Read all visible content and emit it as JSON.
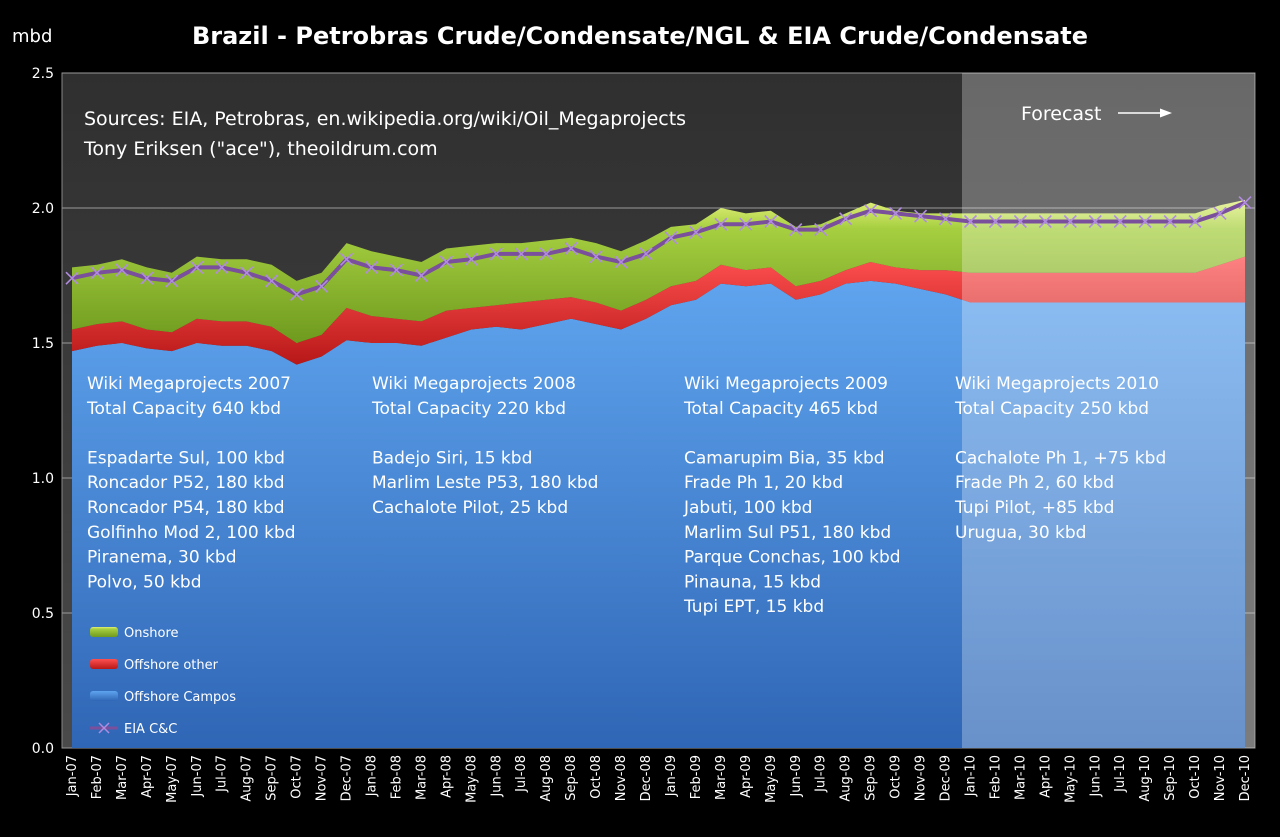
{
  "chart_data": {
    "type": "area",
    "title": "Brazil - Petrobras Crude/Condensate/NGL & EIA Crude/Condensate",
    "ylabel": "mbd",
    "ylim": [
      0,
      2.5
    ],
    "yticks": [
      "0.0",
      "0.5",
      "1.0",
      "1.5",
      "2.0",
      "2.5"
    ],
    "ytick_values": [
      0,
      0.5,
      1.0,
      1.5,
      2.0,
      2.5
    ],
    "grid": true,
    "legend_position": "bottom-left",
    "categories": [
      "Jan-07",
      "Feb-07",
      "Mar-07",
      "Apr-07",
      "May-07",
      "Jun-07",
      "Jul-07",
      "Aug-07",
      "Sep-07",
      "Oct-07",
      "Nov-07",
      "Dec-07",
      "Jan-08",
      "Feb-08",
      "Mar-08",
      "Apr-08",
      "May-08",
      "Jun-08",
      "Jul-08",
      "Aug-08",
      "Sep-08",
      "Oct-08",
      "Nov-08",
      "Dec-08",
      "Jan-09",
      "Feb-09",
      "Mar-09",
      "Apr-09",
      "May-09",
      "Jun-09",
      "Jul-09",
      "Aug-09",
      "Sep-09",
      "Oct-09",
      "Nov-09",
      "Dec-09",
      "Jan-10",
      "Feb-10",
      "Mar-10",
      "Apr-10",
      "May-10",
      "Jun-10",
      "Jul-10",
      "Aug-10",
      "Sep-10",
      "Oct-10",
      "Nov-10",
      "Dec-10"
    ],
    "forecast_start": "Jan-10",
    "series": [
      {
        "name": "Offshore Campos",
        "color": "#4a90d9",
        "values": [
          1.47,
          1.49,
          1.5,
          1.48,
          1.47,
          1.5,
          1.49,
          1.49,
          1.47,
          1.42,
          1.45,
          1.51,
          1.5,
          1.5,
          1.49,
          1.52,
          1.55,
          1.56,
          1.55,
          1.57,
          1.59,
          1.57,
          1.55,
          1.59,
          1.64,
          1.66,
          1.72,
          1.71,
          1.72,
          1.66,
          1.68,
          1.72,
          1.73,
          1.72,
          1.7,
          1.68,
          1.65,
          1.65,
          1.65,
          1.65,
          1.65,
          1.65,
          1.65,
          1.65,
          1.65,
          1.65,
          1.65,
          1.65
        ]
      },
      {
        "name": "Offshore other",
        "color": "#e03030",
        "values": [
          0.08,
          0.08,
          0.08,
          0.07,
          0.07,
          0.09,
          0.09,
          0.09,
          0.09,
          0.08,
          0.08,
          0.12,
          0.1,
          0.09,
          0.09,
          0.1,
          0.08,
          0.08,
          0.1,
          0.09,
          0.08,
          0.08,
          0.07,
          0.07,
          0.07,
          0.07,
          0.07,
          0.06,
          0.06,
          0.05,
          0.05,
          0.05,
          0.07,
          0.06,
          0.07,
          0.09,
          0.11,
          0.11,
          0.11,
          0.11,
          0.11,
          0.11,
          0.11,
          0.11,
          0.11,
          0.11,
          0.14,
          0.17
        ]
      },
      {
        "name": "Onshore",
        "color": "#9bc63a",
        "values": [
          0.23,
          0.22,
          0.23,
          0.23,
          0.22,
          0.23,
          0.23,
          0.23,
          0.23,
          0.23,
          0.23,
          0.24,
          0.24,
          0.23,
          0.22,
          0.23,
          0.23,
          0.23,
          0.22,
          0.22,
          0.22,
          0.22,
          0.22,
          0.22,
          0.22,
          0.21,
          0.21,
          0.21,
          0.21,
          0.22,
          0.21,
          0.21,
          0.22,
          0.21,
          0.21,
          0.21,
          0.22,
          0.22,
          0.22,
          0.22,
          0.22,
          0.22,
          0.22,
          0.22,
          0.22,
          0.22,
          0.22,
          0.21
        ]
      },
      {
        "name": "EIA C&C",
        "color": "#7a4f9c",
        "values": [
          1.74,
          1.76,
          1.77,
          1.74,
          1.73,
          1.78,
          1.78,
          1.76,
          1.73,
          1.68,
          1.71,
          1.81,
          1.78,
          1.77,
          1.75,
          1.8,
          1.81,
          1.83,
          1.83,
          1.83,
          1.85,
          1.82,
          1.8,
          1.83,
          1.89,
          1.91,
          1.94,
          1.94,
          1.95,
          1.92,
          1.92,
          1.96,
          1.99,
          1.98,
          1.97,
          1.96,
          1.95,
          1.95,
          1.95,
          1.95,
          1.95,
          1.95,
          1.95,
          1.95,
          1.95,
          1.95,
          1.98,
          2.02
        ]
      }
    ],
    "legend": [
      "Onshore",
      "Offshore other",
      "Offshore Campos",
      "EIA C&C"
    ],
    "annotations": {
      "sources": [
        "Sources: EIA, Petrobras, en.wikipedia.org/wiki/Oil_Megaprojects",
        "Tony Eriksen (\"ace\"), theoildrum.com"
      ],
      "forecast_label": "Forecast",
      "groups": [
        {
          "lines": [
            "Wiki Megaprojects 2007",
            "Total Capacity 640 kbd",
            "",
            "Espadarte Sul, 100 kbd",
            "Roncador P52, 180 kbd",
            "Roncador P54, 180 kbd",
            "Golfinho Mod 2, 100 kbd",
            "Piranema, 30 kbd",
            "Polvo, 50 kbd"
          ]
        },
        {
          "lines": [
            "Wiki Megaprojects 2008",
            "Total Capacity 220 kbd",
            "",
            "Badejo Siri, 15 kbd",
            "Marlim Leste P53, 180 kbd",
            "Cachalote Pilot, 25 kbd"
          ]
        },
        {
          "lines": [
            "Wiki Megaprojects 2009",
            "Total Capacity  465 kbd",
            "",
            "Camarupim Bia, 35 kbd",
            "Frade Ph 1, 20 kbd",
            "Jabuti, 100 kbd",
            "Marlim Sul P51, 180 kbd",
            "Parque Conchas, 100 kbd",
            "Pinauna, 15 kbd",
            "Tupi EPT, 15 kbd"
          ]
        },
        {
          "lines": [
            "Wiki Megaprojects 2010",
            "Total Capacity 250 kbd",
            "",
            "Cachalote Ph 1, +75 kbd",
            "Frade Ph 2, 60 kbd",
            "Tupi Pilot, +85 kbd",
            "Urugua, 30 kbd"
          ]
        }
      ]
    }
  }
}
